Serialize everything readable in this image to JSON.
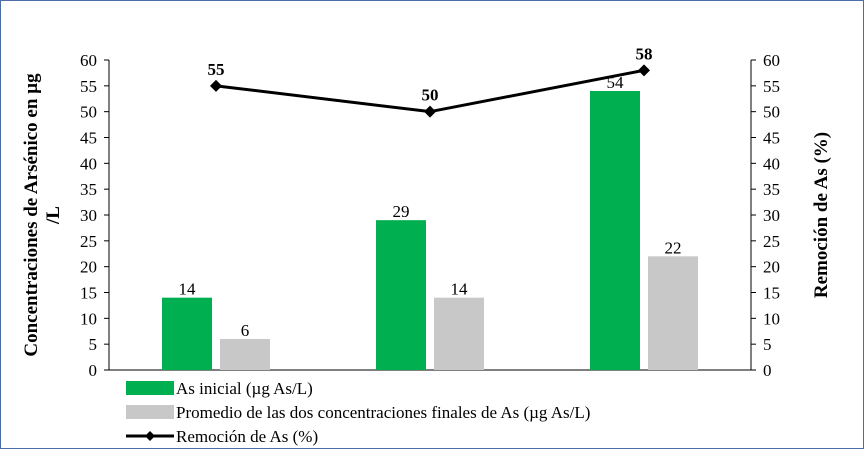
{
  "chart_data": {
    "type": "bar",
    "categories": [
      "",
      "",
      ""
    ],
    "series": [
      {
        "name": "As inicial (µg As/L)",
        "type": "bar",
        "color": "#00b050",
        "values": [
          14,
          29,
          54
        ]
      },
      {
        "name": "Promedio de las dos concentraciones finales de As  (µg As/L)",
        "type": "bar",
        "color": "#c8c8c8",
        "values": [
          6,
          14,
          22
        ]
      },
      {
        "name": "Remoción de As (%)",
        "type": "line",
        "axis": "right",
        "color": "#000000",
        "marker": "diamond",
        "values": [
          55,
          50,
          58
        ]
      }
    ],
    "ylabel_left": "Concentraciones de Arsénico en µg /L",
    "ylabel_right": "Remoción de As (%)",
    "ylim_left": [
      0,
      60
    ],
    "ylim_right": [
      0,
      60
    ],
    "yticks": [
      0,
      5,
      10,
      15,
      20,
      25,
      30,
      35,
      40,
      45,
      50,
      55,
      60
    ],
    "grid": false,
    "legend_position": "bottom"
  }
}
